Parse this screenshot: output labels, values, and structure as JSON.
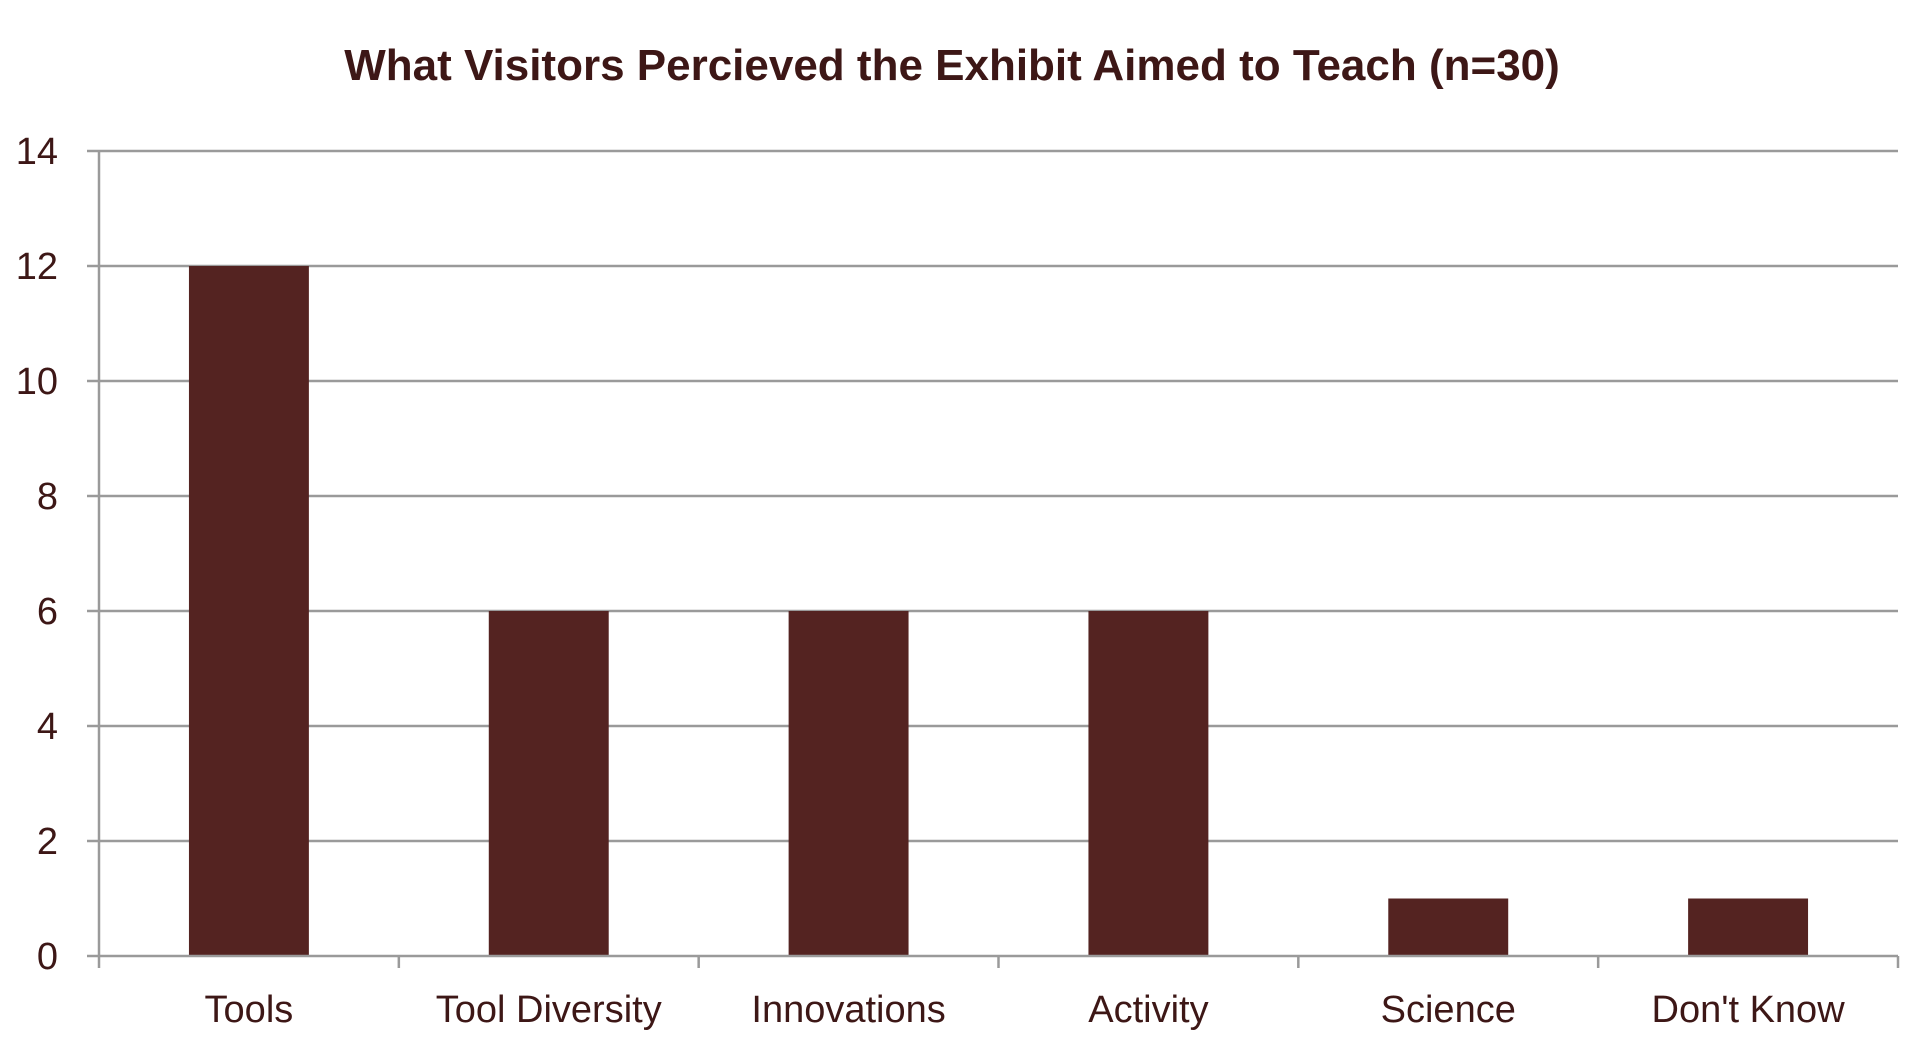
{
  "colors": {
    "bar": "#542321",
    "text": "#3d1716",
    "grid": "#9a9a9a",
    "axis": "#9a9a9a",
    "background": "#ffffff"
  },
  "chart_data": {
    "type": "bar",
    "title": "What Visitors Percieved the Exhibit Aimed to Teach (n=30)",
    "xlabel": "",
    "ylabel": "",
    "categories": [
      "Tools",
      "Tool Diversity",
      "Innovations",
      "Activity",
      "Science",
      "Don't Know"
    ],
    "values": [
      12,
      6,
      6,
      6,
      1,
      1
    ],
    "ylim": [
      0,
      14
    ],
    "yticks": [
      0,
      2,
      4,
      6,
      8,
      10,
      12,
      14
    ],
    "grid": true,
    "legend": "none"
  }
}
